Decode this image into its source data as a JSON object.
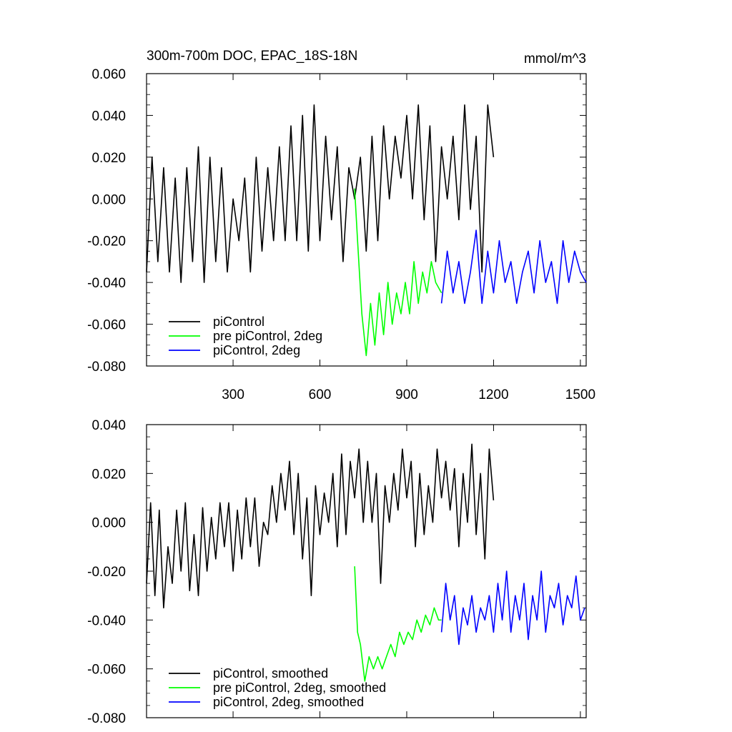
{
  "chart_data": [
    {
      "type": "line",
      "title": "300m-700m DOC, EPAC_18S-18N",
      "units": "mmol/m^3",
      "xlim": [
        1,
        1520
      ],
      "ylim": [
        -0.08,
        0.06
      ],
      "x_ticks": [
        300,
        600,
        900,
        1200,
        1500
      ],
      "x_tick_labels": [
        "300",
        "600",
        "900",
        "1200",
        "1500"
      ],
      "y_ticks": [
        -0.08,
        -0.06,
        -0.04,
        -0.02,
        0.0,
        0.02,
        0.04,
        0.06
      ],
      "y_tick_labels": [
        "-0.080",
        "-0.060",
        "-0.040",
        "-0.020",
        "0.000",
        "0.020",
        "0.040",
        "0.060"
      ],
      "legend_position": "bottom-left",
      "series": [
        {
          "name": "piControl",
          "color": "#000000",
          "x": [
            1,
            20,
            40,
            60,
            80,
            100,
            120,
            140,
            160,
            180,
            200,
            220,
            240,
            260,
            280,
            300,
            320,
            340,
            360,
            380,
            400,
            420,
            440,
            460,
            480,
            500,
            520,
            540,
            560,
            580,
            600,
            620,
            640,
            660,
            680,
            700,
            720,
            740,
            760,
            780,
            800,
            820,
            840,
            860,
            880,
            900,
            920,
            940,
            960,
            980,
            1000,
            1020,
            1040,
            1060,
            1080,
            1100,
            1120,
            1140,
            1160,
            1180,
            1200
          ],
          "y": [
            -0.035,
            0.02,
            -0.03,
            0.015,
            -0.035,
            0.01,
            -0.04,
            0.015,
            -0.03,
            0.025,
            -0.04,
            0.02,
            -0.03,
            0.015,
            -0.035,
            0.0,
            -0.02,
            0.01,
            -0.035,
            0.02,
            -0.025,
            0.015,
            -0.02,
            0.025,
            -0.02,
            0.035,
            -0.02,
            0.04,
            -0.025,
            0.045,
            -0.02,
            0.03,
            -0.01,
            0.025,
            -0.03,
            0.015,
            0.0,
            0.02,
            -0.025,
            0.03,
            -0.02,
            0.035,
            0.0,
            0.03,
            0.01,
            0.04,
            0.0,
            0.045,
            -0.01,
            0.035,
            -0.03,
            0.025,
            0.0,
            0.03,
            -0.01,
            0.045,
            -0.005,
            0.03,
            -0.035,
            0.045,
            0.02
          ]
        },
        {
          "name": "pre piControl, 2deg",
          "color": "#00ff00",
          "x": [
            720,
            730,
            745,
            760,
            775,
            790,
            805,
            820,
            835,
            850,
            865,
            880,
            895,
            910,
            925,
            940,
            955,
            970,
            985,
            1000,
            1020
          ],
          "y": [
            0.005,
            -0.02,
            -0.055,
            -0.075,
            -0.05,
            -0.07,
            -0.045,
            -0.065,
            -0.04,
            -0.06,
            -0.045,
            -0.055,
            -0.04,
            -0.055,
            -0.03,
            -0.05,
            -0.035,
            -0.045,
            -0.03,
            -0.04,
            -0.045
          ]
        },
        {
          "name": "piControl, 2deg",
          "color": "#0000ff",
          "x": [
            1020,
            1040,
            1060,
            1080,
            1100,
            1120,
            1140,
            1160,
            1180,
            1200,
            1220,
            1240,
            1260,
            1280,
            1300,
            1320,
            1340,
            1360,
            1380,
            1400,
            1420,
            1440,
            1460,
            1480,
            1500,
            1520
          ],
          "y": [
            -0.05,
            -0.025,
            -0.045,
            -0.03,
            -0.05,
            -0.035,
            -0.015,
            -0.05,
            -0.025,
            -0.045,
            -0.02,
            -0.04,
            -0.03,
            -0.05,
            -0.035,
            -0.025,
            -0.045,
            -0.02,
            -0.04,
            -0.03,
            -0.05,
            -0.02,
            -0.04,
            -0.025,
            -0.035,
            -0.04
          ]
        }
      ]
    },
    {
      "type": "line",
      "xlim": [
        1,
        1520
      ],
      "ylim": [
        -0.08,
        0.04
      ],
      "x_ticks": [
        300,
        600,
        900,
        1200,
        1500
      ],
      "y_ticks": [
        -0.08,
        -0.06,
        -0.04,
        -0.02,
        0.0,
        0.02,
        0.04
      ],
      "y_tick_labels": [
        "-0.080",
        "-0.060",
        "-0.040",
        "-0.020",
        "0.000",
        "0.020",
        "0.040"
      ],
      "legend_position": "bottom-left",
      "series": [
        {
          "name": "piControl, smoothed",
          "color": "#000000",
          "x": [
            1,
            15,
            30,
            45,
            60,
            75,
            90,
            105,
            120,
            135,
            150,
            165,
            180,
            195,
            210,
            225,
            240,
            255,
            270,
            285,
            300,
            315,
            330,
            345,
            360,
            375,
            390,
            405,
            420,
            435,
            450,
            465,
            480,
            495,
            510,
            525,
            540,
            555,
            570,
            585,
            600,
            615,
            630,
            645,
            660,
            675,
            690,
            705,
            720,
            735,
            750,
            765,
            780,
            795,
            810,
            825,
            840,
            855,
            870,
            885,
            900,
            915,
            930,
            945,
            960,
            975,
            990,
            1005,
            1020,
            1035,
            1050,
            1065,
            1080,
            1095,
            1110,
            1125,
            1140,
            1155,
            1170,
            1185,
            1200
          ],
          "y": [
            -0.025,
            0.008,
            -0.03,
            0.005,
            -0.035,
            -0.01,
            -0.025,
            0.005,
            -0.02,
            0.008,
            -0.028,
            -0.005,
            -0.03,
            0.006,
            -0.02,
            0.002,
            -0.015,
            0.008,
            -0.01,
            0.008,
            -0.02,
            0.005,
            -0.015,
            0.01,
            -0.01,
            0.01,
            -0.018,
            0.0,
            -0.005,
            0.015,
            0.0,
            0.02,
            0.005,
            0.025,
            -0.005,
            0.02,
            -0.015,
            0.01,
            -0.03,
            0.015,
            -0.005,
            0.012,
            0.0,
            0.02,
            -0.01,
            0.028,
            -0.005,
            0.025,
            0.01,
            0.03,
            0.0,
            0.025,
            0.0,
            0.02,
            -0.025,
            0.015,
            0.0,
            0.02,
            0.005,
            0.03,
            0.01,
            0.025,
            -0.01,
            0.02,
            -0.005,
            0.015,
            0.0,
            0.03,
            0.01,
            0.025,
            0.005,
            0.022,
            -0.01,
            0.02,
            0.0,
            0.032,
            -0.005,
            0.02,
            -0.015,
            0.03,
            0.009
          ]
        },
        {
          "name": "pre piControl, 2deg, smoothed",
          "color": "#00ff00",
          "x": [
            720,
            730,
            740,
            755,
            770,
            785,
            800,
            815,
            830,
            845,
            860,
            875,
            890,
            905,
            920,
            935,
            950,
            965,
            980,
            995,
            1010,
            1020
          ],
          "y": [
            -0.018,
            -0.045,
            -0.05,
            -0.065,
            -0.055,
            -0.06,
            -0.055,
            -0.06,
            -0.055,
            -0.05,
            -0.055,
            -0.045,
            -0.05,
            -0.045,
            -0.048,
            -0.04,
            -0.045,
            -0.038,
            -0.042,
            -0.035,
            -0.04,
            -0.04
          ]
        },
        {
          "name": "piControl, 2deg, smoothed",
          "color": "#0000ff",
          "x": [
            1020,
            1035,
            1050,
            1065,
            1080,
            1095,
            1110,
            1125,
            1140,
            1155,
            1170,
            1185,
            1200,
            1215,
            1230,
            1245,
            1260,
            1275,
            1290,
            1305,
            1320,
            1335,
            1350,
            1365,
            1380,
            1395,
            1410,
            1425,
            1440,
            1455,
            1470,
            1485,
            1500,
            1515
          ],
          "y": [
            -0.045,
            -0.025,
            -0.04,
            -0.03,
            -0.05,
            -0.035,
            -0.042,
            -0.03,
            -0.045,
            -0.035,
            -0.04,
            -0.03,
            -0.045,
            -0.025,
            -0.04,
            -0.02,
            -0.045,
            -0.03,
            -0.04,
            -0.025,
            -0.048,
            -0.03,
            -0.04,
            -0.02,
            -0.045,
            -0.03,
            -0.035,
            -0.025,
            -0.042,
            -0.03,
            -0.035,
            -0.022,
            -0.04,
            -0.035
          ]
        }
      ]
    }
  ]
}
